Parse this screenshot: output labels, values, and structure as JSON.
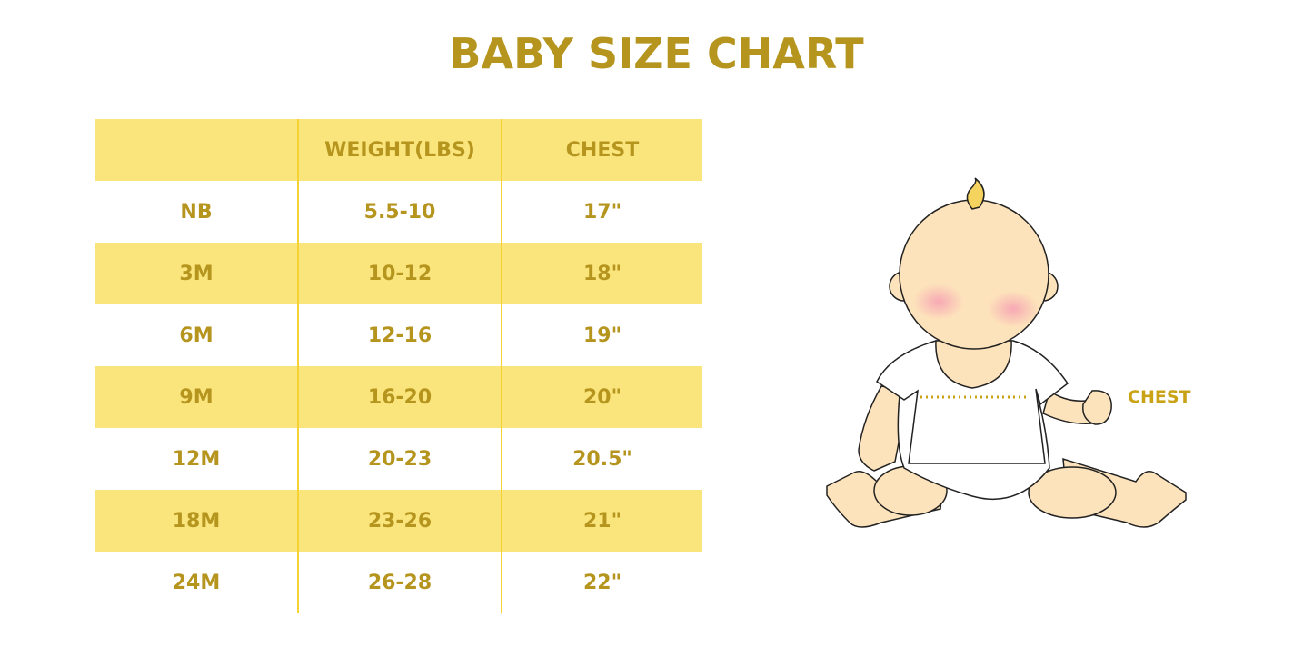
{
  "title": "BABY SIZE CHART",
  "table": {
    "headers": [
      "",
      "WEIGHT(LBS)",
      "CHEST"
    ],
    "rows": [
      [
        "NB",
        "5.5-10",
        "17\""
      ],
      [
        "3M",
        "10-12",
        "18\""
      ],
      [
        "6M",
        "12-16",
        "19\""
      ],
      [
        "9M",
        "16-20",
        "20\""
      ],
      [
        "12M",
        "20-23",
        "20.5\""
      ],
      [
        "18M",
        "23-26",
        "21\""
      ],
      [
        "24M",
        "26-28",
        "22\""
      ]
    ]
  },
  "illustration": {
    "label": "CHEST",
    "icon": "baby-illustration"
  },
  "colors": {
    "text": "#b5951e",
    "band": "#fae47c",
    "divider": "#f6d232"
  }
}
